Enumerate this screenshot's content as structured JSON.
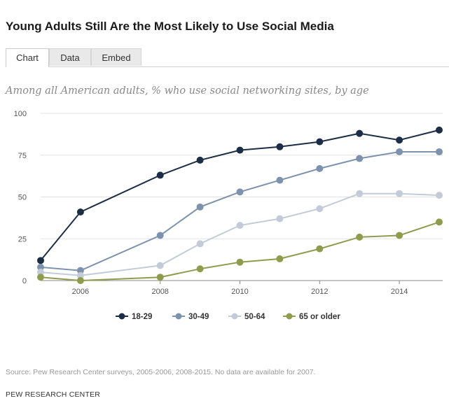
{
  "header": {
    "title": "Young Adults Still Are the Most Likely to Use Social Media"
  },
  "tabs": [
    {
      "label": "Chart",
      "active": true
    },
    {
      "label": "Data",
      "active": false
    },
    {
      "label": "Embed",
      "active": false
    }
  ],
  "subtitle": "Among all American adults, % who use social networking sites, by age",
  "chart_data": {
    "type": "line",
    "x": [
      2005,
      2006,
      2008,
      2009,
      2010,
      2011,
      2012,
      2013,
      2014,
      2015
    ],
    "xticks": [
      "2006",
      "2008",
      "2010",
      "2012",
      "2014"
    ],
    "xtick_values": [
      2006,
      2008,
      2010,
      2012,
      2014
    ],
    "yticks": [
      "0",
      "25",
      "50",
      "75",
      "100"
    ],
    "ytick_values": [
      0,
      25,
      50,
      75,
      100
    ],
    "ylim": [
      0,
      100
    ],
    "xlim": [
      2005,
      2015
    ],
    "grid": "horizontal",
    "legend_position": "bottom",
    "series": [
      {
        "name": "18-29",
        "color": "#1b2e45",
        "values": [
          12,
          41,
          63,
          72,
          78,
          80,
          83,
          88,
          84,
          90
        ]
      },
      {
        "name": "30-49",
        "color": "#7d93ad",
        "values": [
          8,
          6,
          27,
          44,
          53,
          60,
          67,
          73,
          77,
          77
        ]
      },
      {
        "name": "50-64",
        "color": "#c3cbd8",
        "values": [
          5,
          3,
          9,
          22,
          33,
          37,
          43,
          52,
          52,
          51
        ]
      },
      {
        "name": "65 or older",
        "color": "#8f9c4e",
        "values": [
          2,
          0,
          2,
          7,
          11,
          13,
          19,
          26,
          27,
          35
        ]
      }
    ]
  },
  "footer": {
    "source": "Source: Pew Research Center surveys, 2005-2006, 2008-2015. No data are available for 2007.",
    "org": "PEW RESEARCH CENTER"
  }
}
